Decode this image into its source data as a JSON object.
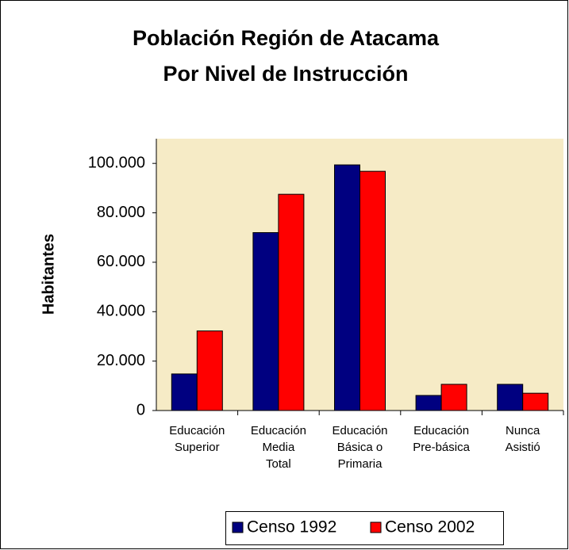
{
  "chart_data": {
    "type": "bar",
    "title": [
      "Población Región de Atacama",
      "Por Nivel de Instrucción"
    ],
    "y_label": "Habitantes",
    "categories": [
      "Educación\nSuperior",
      "Educación\nMedia\nTotal",
      "Educación\nBásica o\nPrimaria",
      "Educación\nPre-básica",
      "Nunca\nAsistió"
    ],
    "series": [
      {
        "name": "Censo 1992",
        "color": "#000080",
        "values": [
          14800,
          72000,
          99400,
          6100,
          10600
        ]
      },
      {
        "name": "Censo 2002",
        "color": "#ff0000",
        "values": [
          32200,
          87500,
          96800,
          10600,
          7000
        ]
      }
    ],
    "ylim": [
      0,
      110000
    ],
    "yticks": [
      0,
      {
        "value": 20000,
        "label": "20.000"
      },
      {
        "value": 40000,
        "label": "40.000"
      },
      {
        "value": 60000,
        "label": "60.000"
      },
      {
        "value": 80000,
        "label": "80.000"
      },
      {
        "value": 100000,
        "label": "100.000"
      }
    ],
    "legend": "bottom",
    "plot_background": "#f6ebc6"
  }
}
